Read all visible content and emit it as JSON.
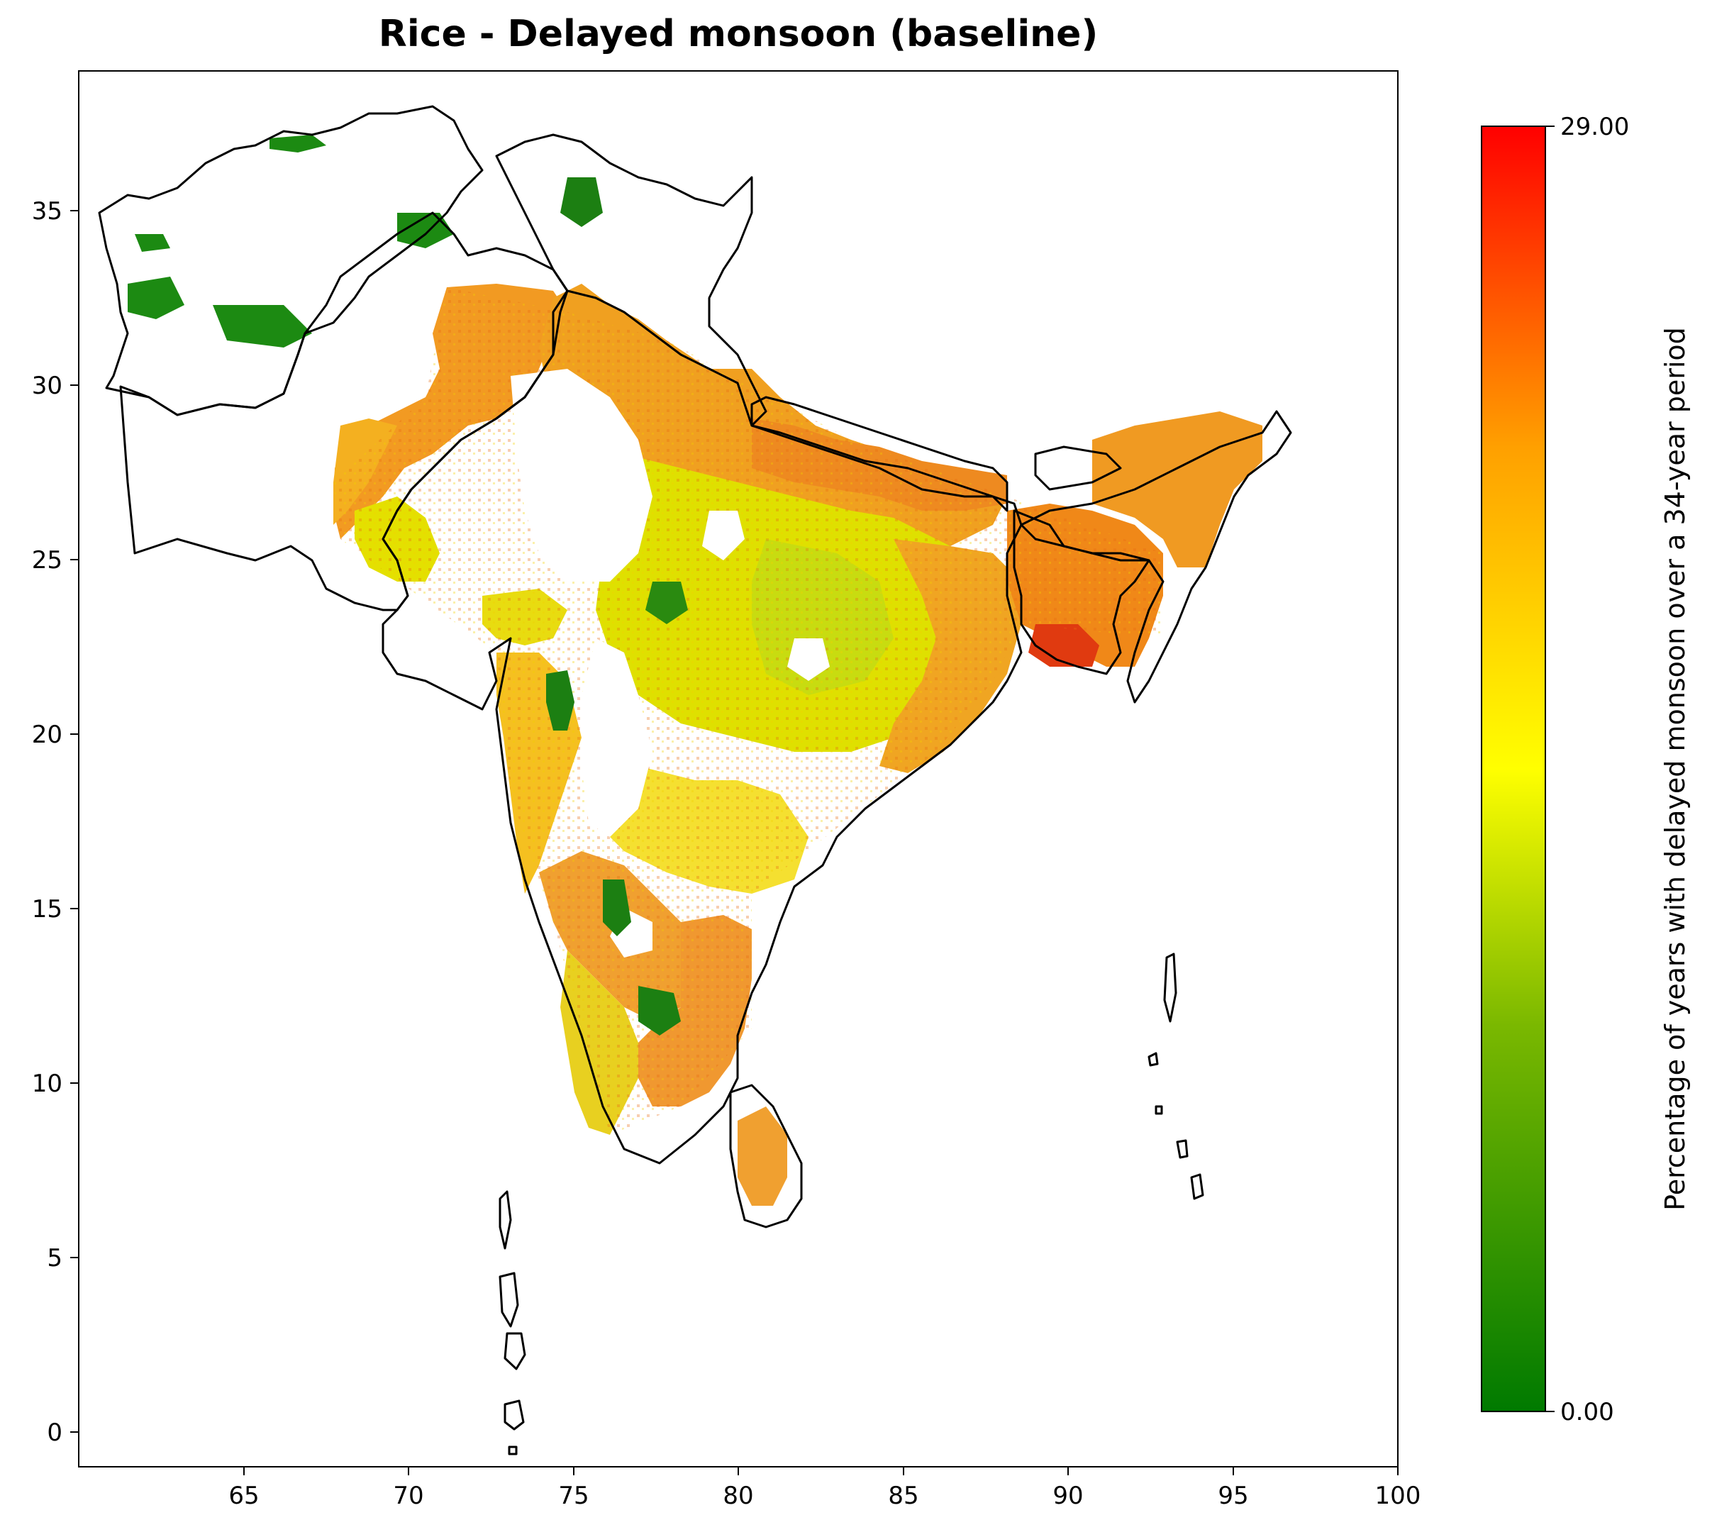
{
  "title": "Rice - Delayed monsoon (baseline)",
  "axes": {
    "x_ticks": [
      "65",
      "70",
      "75",
      "80",
      "85",
      "90",
      "95",
      "100"
    ],
    "y_ticks": [
      "0",
      "5",
      "10",
      "15",
      "20",
      "25",
      "30",
      "35"
    ],
    "xlim": [
      60,
      100
    ],
    "ylim": [
      -1,
      39
    ]
  },
  "colorbar": {
    "label": "Percentage of years with delayed monsoon over a 34-year period",
    "min_label": "0.00",
    "max_label": "29.00",
    "range": [
      0,
      29
    ],
    "colors": [
      "#007a00",
      "#9fd000",
      "#ffff00",
      "#ffa000",
      "#ff0000"
    ]
  },
  "map": {
    "region": "South Asia",
    "crop": "Rice",
    "colors": {
      "low": "#1a7f1a",
      "mid_low": "#c8e000",
      "mid": "#f6e800",
      "mid_high": "#f7a21c",
      "high": "#e8401a"
    }
  }
}
